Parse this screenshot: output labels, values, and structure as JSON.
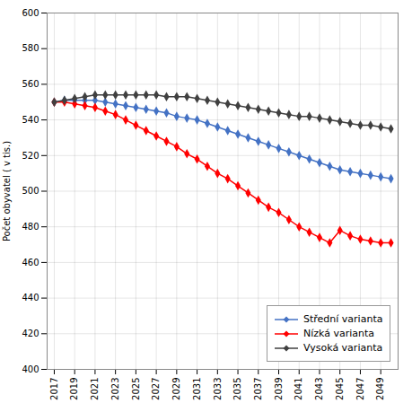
{
  "chart_data": {
    "type": "line",
    "x": [
      2017,
      2018,
      2019,
      2020,
      2021,
      2022,
      2023,
      2024,
      2025,
      2026,
      2027,
      2028,
      2029,
      2030,
      2031,
      2032,
      2033,
      2034,
      2035,
      2036,
      2037,
      2038,
      2039,
      2040,
      2041,
      2042,
      2043,
      2044,
      2045,
      2046,
      2047,
      2048,
      2049,
      2050
    ],
    "series": [
      {
        "name": "Střední varianta",
        "color": "#4472C4",
        "marker": "diamond",
        "values": [
          550,
          551,
          551,
          551,
          551,
          550,
          549,
          548,
          547,
          546,
          545,
          544,
          542,
          541,
          540,
          538,
          536,
          534,
          532,
          530,
          528,
          526,
          524,
          522,
          520,
          518,
          516,
          514,
          512,
          511,
          510,
          509,
          508,
          507
        ]
      },
      {
        "name": "Nízká varianta",
        "color": "#FF0000",
        "marker": "diamond",
        "values": [
          550,
          550,
          549,
          548,
          547,
          545,
          543,
          540,
          537,
          534,
          531,
          528,
          525,
          521,
          518,
          514,
          510,
          507,
          503,
          499,
          495,
          491,
          488,
          484,
          480,
          477,
          474,
          471,
          478,
          475,
          473,
          472,
          471,
          471
        ]
      },
      {
        "name": "Vysoká varianta",
        "color": "#404040",
        "marker": "diamond",
        "values": [
          550,
          551,
          552,
          553,
          554,
          554,
          554,
          554,
          554,
          554,
          554,
          553,
          553,
          553,
          552,
          551,
          550,
          549,
          548,
          547,
          546,
          545,
          544,
          543,
          542,
          542,
          541,
          540,
          539,
          538,
          537,
          537,
          536,
          535
        ]
      }
    ],
    "ylabel": "Počet obyvatel ( v tis.)",
    "xlim": [
      2016.3,
      2050.7
    ],
    "xticks": [
      2017,
      2019,
      2021,
      2023,
      2025,
      2027,
      2029,
      2031,
      2033,
      2035,
      2037,
      2039,
      2041,
      2043,
      2045,
      2047,
      2049
    ],
    "ylim": [
      400,
      600
    ],
    "yticks": [
      400,
      420,
      440,
      460,
      480,
      500,
      520,
      540,
      560,
      580,
      600
    ],
    "grid": true,
    "legend": "lower right"
  }
}
